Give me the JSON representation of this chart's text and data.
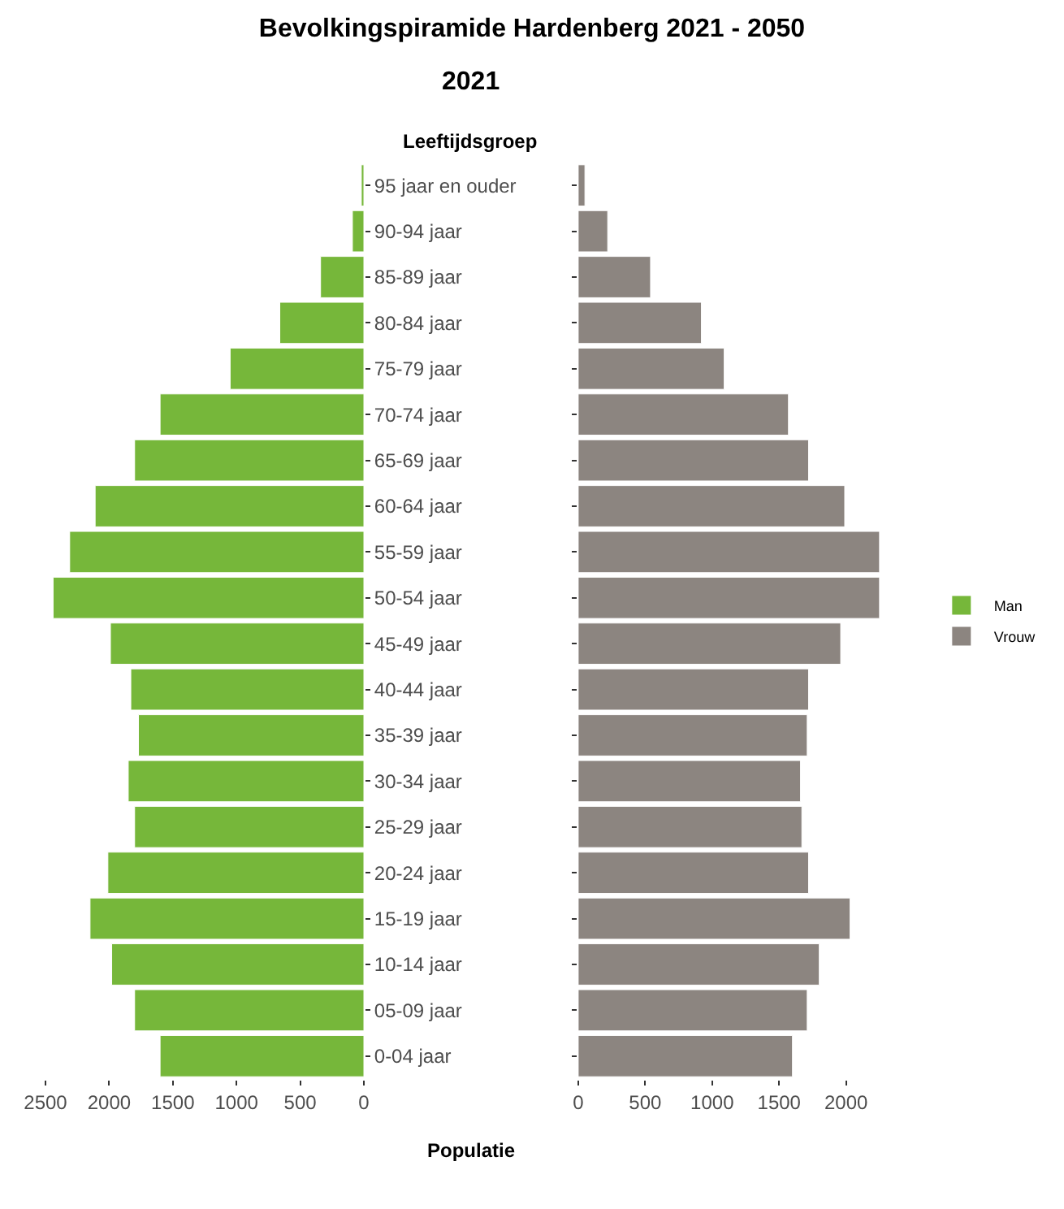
{
  "chart_data": [
    {
      "type": "bar",
      "orientation": "horizontal",
      "title": "Bevolkingspiramide Hardenberg 2021 - 2050",
      "subtitle": "2021",
      "ylabel": "Leeftijdsgroep",
      "categories": [
        "95 jaar en ouder",
        "90-94 jaar",
        "85-89 jaar",
        "80-84 jaar",
        "75-79 jaar",
        "70-74 jaar",
        "65-69 jaar",
        "60-64 jaar",
        "55-59 jaar",
        "50-54 jaar",
        "45-49 jaar",
        "40-44 jaar",
        "35-39 jaar",
        "30-34 jaar",
        "25-29 jaar",
        "20-24 jaar",
        "15-19 jaar",
        "10-14 jaar",
        "05-09 jaar",
        "0-04 jaar"
      ],
      "series": [
        {
          "name": "Man",
          "color": "#76b73a",
          "values": [
            20,
            90,
            340,
            660,
            1050,
            1600,
            1800,
            2110,
            2310,
            2440,
            1990,
            1830,
            1770,
            1850,
            1800,
            2010,
            2150,
            1980,
            1800,
            1600
          ]
        }
      ],
      "xlim": [
        2500,
        0
      ],
      "xticks": [
        2500,
        2000,
        1500,
        1000,
        500,
        0
      ],
      "legend": "right"
    },
    {
      "type": "bar",
      "orientation": "horizontal",
      "xlabel": "Populatie",
      "tick_labels": "x",
      "categories": [
        "95 jaar en ouder",
        "90-94 jaar",
        "85-89 jaar",
        "80-84 jaar",
        "75-79 jaar",
        "70-74 jaar",
        "65-69 jaar",
        "60-64 jaar",
        "55-59 jaar",
        "50-54 jaar",
        "45-49 jaar",
        "40-44 jaar",
        "35-39 jaar",
        "30-34 jaar",
        "25-29 jaar",
        "20-24 jaar",
        "15-19 jaar",
        "10-14 jaar",
        "05-09 jaar",
        "0-04 jaar"
      ],
      "series": [
        {
          "name": "Vrouw",
          "color": "#8c8580",
          "values": [
            50,
            220,
            540,
            920,
            1090,
            1570,
            1720,
            1990,
            2250,
            2250,
            1960,
            1720,
            1710,
            1660,
            1670,
            1720,
            2030,
            1800,
            1710,
            1600
          ]
        }
      ],
      "xlim": [
        0,
        2250
      ],
      "xticks": [
        0,
        500,
        1000,
        1500,
        2000
      ],
      "legend": "right"
    }
  ]
}
